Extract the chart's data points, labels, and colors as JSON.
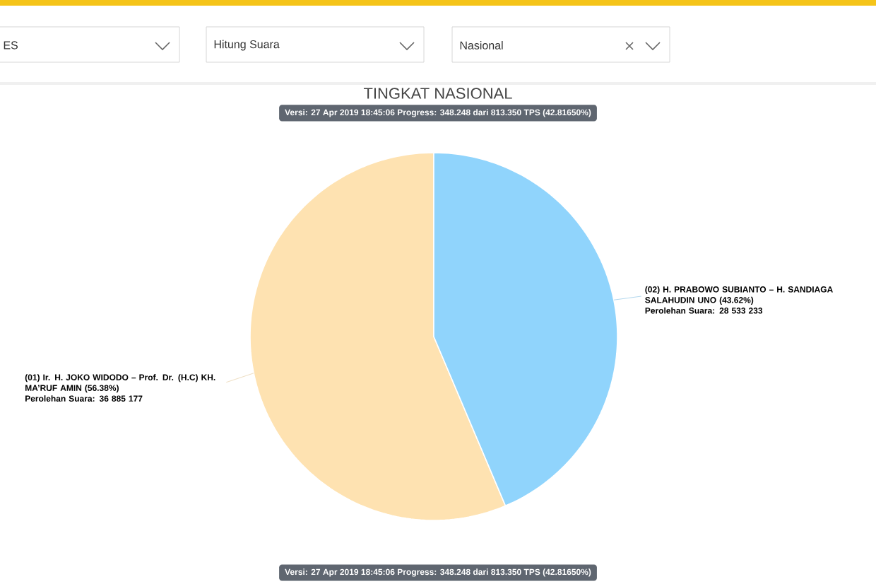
{
  "chart_data": {
    "type": "pie",
    "title": "TINGKAT NASIONAL",
    "subtitle": "Versi: 27 Apr 2019 18:45:06 Progress: 348.248 dari 813.350 TPS (42.81650%)",
    "categories": [
      "(01) Ir. H. JOKO WIDODO – Prof. Dr. (H.C) KH. MA’RUF AMIN (56.38%)",
      "(02) H. PRABOWO SUBIANTO – H. SANDIAGA SALAHUDIN UNO (43.62%)"
    ],
    "values": [
      36885177,
      28533233
    ],
    "value_labels": [
      "Perolehan Suara: 36 885 177",
      "Perolehan Suara: 28 533 233"
    ],
    "colors": [
      "#fee2b1",
      "#90d4fc"
    ],
    "annotations": [
      "ES",
      "Hitung Suara",
      "Nasional",
      "Versi: 27 Apr 2019 18:45:06 Progress: 348.248 dari 813.350 TPS (42.81650%)"
    ]
  }
}
